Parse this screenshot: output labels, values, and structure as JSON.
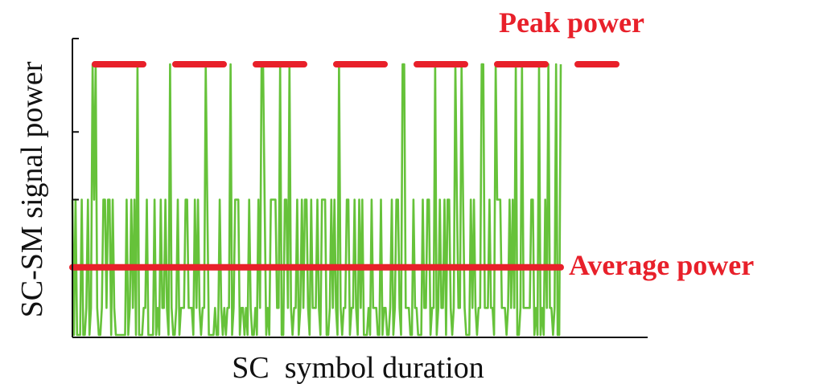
{
  "chart_data": {
    "type": "line",
    "title": "",
    "xlabel": "SC  symbol duration",
    "ylabel": "SC-SM signal power",
    "ylim": [
      0,
      4
    ],
    "xlim": [
      0,
      320
    ],
    "grid": false,
    "legend": "none",
    "yticks": [
      2,
      3,
      4
    ],
    "colors": {
      "signal": "#66c23a",
      "reference": "#e8202a",
      "axis": "#111111"
    },
    "series": [
      {
        "values": [
          2,
          0,
          2,
          0,
          0,
          0,
          2,
          0,
          0,
          0.4,
          2,
          0,
          0.4,
          4,
          2,
          4,
          0.4,
          0,
          0,
          0.4,
          2,
          2,
          0.4,
          2,
          2,
          0,
          2,
          0.4,
          0,
          0,
          0,
          0,
          0,
          0,
          0,
          2,
          0,
          0.4,
          2,
          0.4,
          2,
          0,
          4,
          0,
          0,
          0,
          0.4,
          0.4,
          2,
          0,
          0,
          0,
          0,
          2,
          0,
          0.4,
          0,
          2,
          0.4,
          0.4,
          2,
          0.4,
          0,
          4,
          0.4,
          0,
          0,
          0.4,
          2,
          0,
          0.4,
          0.4,
          0.4,
          2,
          2,
          0.4,
          0.4,
          0.4,
          0,
          2,
          0.4,
          2,
          0.4,
          0,
          0.4,
          0.4,
          4,
          2,
          0,
          0,
          0,
          0,
          0.4,
          0,
          0,
          2,
          0.4,
          0,
          0.4,
          0,
          0.4,
          0.4,
          4,
          0,
          0.4,
          2,
          2,
          2,
          0,
          0.4,
          0.4,
          0,
          0.4,
          0,
          2,
          0.4,
          0,
          0,
          0.4,
          0,
          2,
          0.4,
          4,
          4,
          2,
          0,
          0.4,
          0,
          2,
          2,
          2,
          2,
          0.4,
          0.4,
          4,
          0,
          0,
          2,
          2,
          0.4,
          4,
          0.4,
          0,
          0.4,
          0.4,
          2,
          0,
          0.4,
          2,
          0.4,
          2,
          2,
          0.4,
          0,
          2,
          0.4,
          0.4,
          0.4,
          2,
          0.4,
          0,
          2,
          2,
          2,
          0,
          0,
          0.4,
          2,
          0.4,
          2,
          0.4,
          0,
          4,
          0.4,
          0,
          0.4,
          0.4,
          2,
          2,
          0,
          0.4,
          0.4,
          2,
          0.4,
          0,
          2,
          0.4,
          2,
          0,
          0,
          0,
          0.4,
          0,
          2,
          0.4,
          0.4,
          0.4,
          0,
          0,
          2,
          0,
          0.4,
          0.4,
          0,
          0,
          0.4,
          2,
          0,
          0.4,
          2,
          2,
          0.4,
          0,
          4,
          4,
          0.4,
          0.4,
          0.4,
          0,
          0,
          2,
          0.4,
          0.4,
          0,
          0,
          0,
          2,
          0.4,
          0.4,
          2,
          2,
          0,
          0.4,
          0.4,
          4,
          0,
          0.4,
          2,
          0.4,
          0.4,
          2,
          0,
          2,
          2,
          0.4,
          0,
          0.4,
          4,
          2,
          0.4,
          0.4,
          4,
          2,
          0.4,
          0,
          0,
          0,
          2,
          0.4,
          2,
          0.4,
          0,
          0.4,
          0.4,
          4,
          4,
          0.4,
          0.4,
          0.4,
          2,
          0.4,
          0.4,
          0,
          4,
          2,
          2,
          2,
          0.4,
          0.4,
          0.4,
          0,
          0.4,
          2,
          0.4,
          2,
          0.4,
          4,
          0,
          0,
          0.4,
          4,
          0.4,
          0.4,
          0.4,
          0.4,
          0.4,
          2,
          2,
          0,
          0.4,
          0,
          4,
          0,
          0.4,
          0,
          2,
          0.4,
          4,
          0.4,
          0.4,
          0,
          0.4,
          4,
          0,
          0,
          4
        ]
      }
    ],
    "reference_lines": [
      {
        "label": "Peak power",
        "value": 4,
        "style": "dashed"
      },
      {
        "label": "Average power",
        "value": 1.0,
        "style": "solid"
      }
    ]
  }
}
